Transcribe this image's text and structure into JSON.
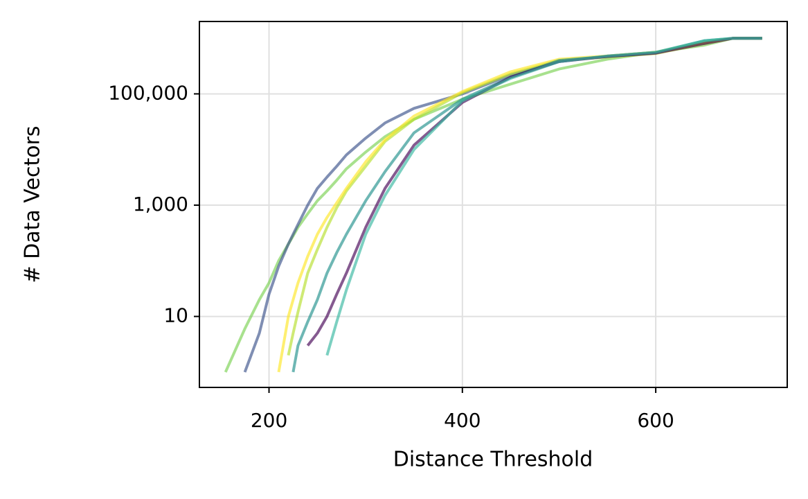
{
  "chart_data": {
    "type": "line",
    "xlabel": "Distance Threshold",
    "ylabel": "# Data Vectors",
    "x": [
      155,
      175,
      190,
      200,
      210,
      220,
      225,
      230,
      240,
      250,
      260,
      270,
      280,
      300,
      320,
      350,
      400,
      450,
      500,
      550,
      600,
      650,
      680,
      710
    ],
    "series": [
      {
        "color": "#7ad151",
        "values": [
          1,
          6,
          20,
          40,
          100,
          200,
          280,
          400,
          700,
          1200,
          1800,
          2800,
          4500,
          9000,
          17000,
          35000,
          80000,
          150000,
          280000,
          420000,
          560000,
          750000,
          1000000,
          1000000
        ]
      },
      {
        "color": "#3b528b",
        "values": [
          null,
          1,
          5,
          25,
          80,
          200,
          300,
          450,
          1000,
          2000,
          3200,
          5000,
          8000,
          16000,
          30000,
          55000,
          100000,
          220000,
          380000,
          480000,
          560000,
          850000,
          1000000,
          1000000
        ]
      },
      {
        "color": "#b5de2b",
        "values": [
          null,
          null,
          null,
          null,
          null,
          2,
          5,
          12,
          60,
          160,
          400,
          900,
          1800,
          5000,
          14000,
          35000,
          105000,
          230000,
          400000,
          460000,
          530000,
          800000,
          1000000,
          1000000
        ]
      },
      {
        "color": "#fde725",
        "values": [
          null,
          null,
          null,
          null,
          1,
          10,
          20,
          40,
          120,
          300,
          600,
          1100,
          2000,
          6000,
          15000,
          40000,
          110000,
          250000,
          420000,
          480000,
          560000,
          850000,
          1000000,
          1000000
        ]
      },
      {
        "color": "#21918c",
        "values": [
          null,
          null,
          null,
          null,
          null,
          null,
          1,
          3,
          8,
          20,
          60,
          140,
          300,
          1200,
          4000,
          20000,
          80000,
          200000,
          400000,
          470000,
          550000,
          900000,
          1000000,
          1000000
        ]
      },
      {
        "color": "#440154",
        "values": [
          null,
          null,
          null,
          null,
          null,
          null,
          null,
          null,
          3,
          5,
          10,
          25,
          60,
          400,
          2000,
          12000,
          70000,
          200000,
          380000,
          470000,
          540000,
          800000,
          1000000,
          1000000
        ]
      },
      {
        "color": "#35b7a0",
        "values": [
          null,
          null,
          null,
          null,
          null,
          null,
          null,
          null,
          null,
          null,
          2,
          8,
          30,
          300,
          1500,
          10000,
          75000,
          190000,
          380000,
          480000,
          560000,
          900000,
          1000000,
          1000000
        ]
      }
    ],
    "xlim": [
      128,
      736
    ],
    "ylim": [
      0.53,
      2000000
    ],
    "yscale": "log",
    "xticks": [
      200,
      400,
      600
    ],
    "yticks": [
      10,
      {
        "value": 1000,
        "label": "1,000"
      },
      {
        "value": 100000,
        "label": "100,000"
      }
    ],
    "grid": true
  }
}
